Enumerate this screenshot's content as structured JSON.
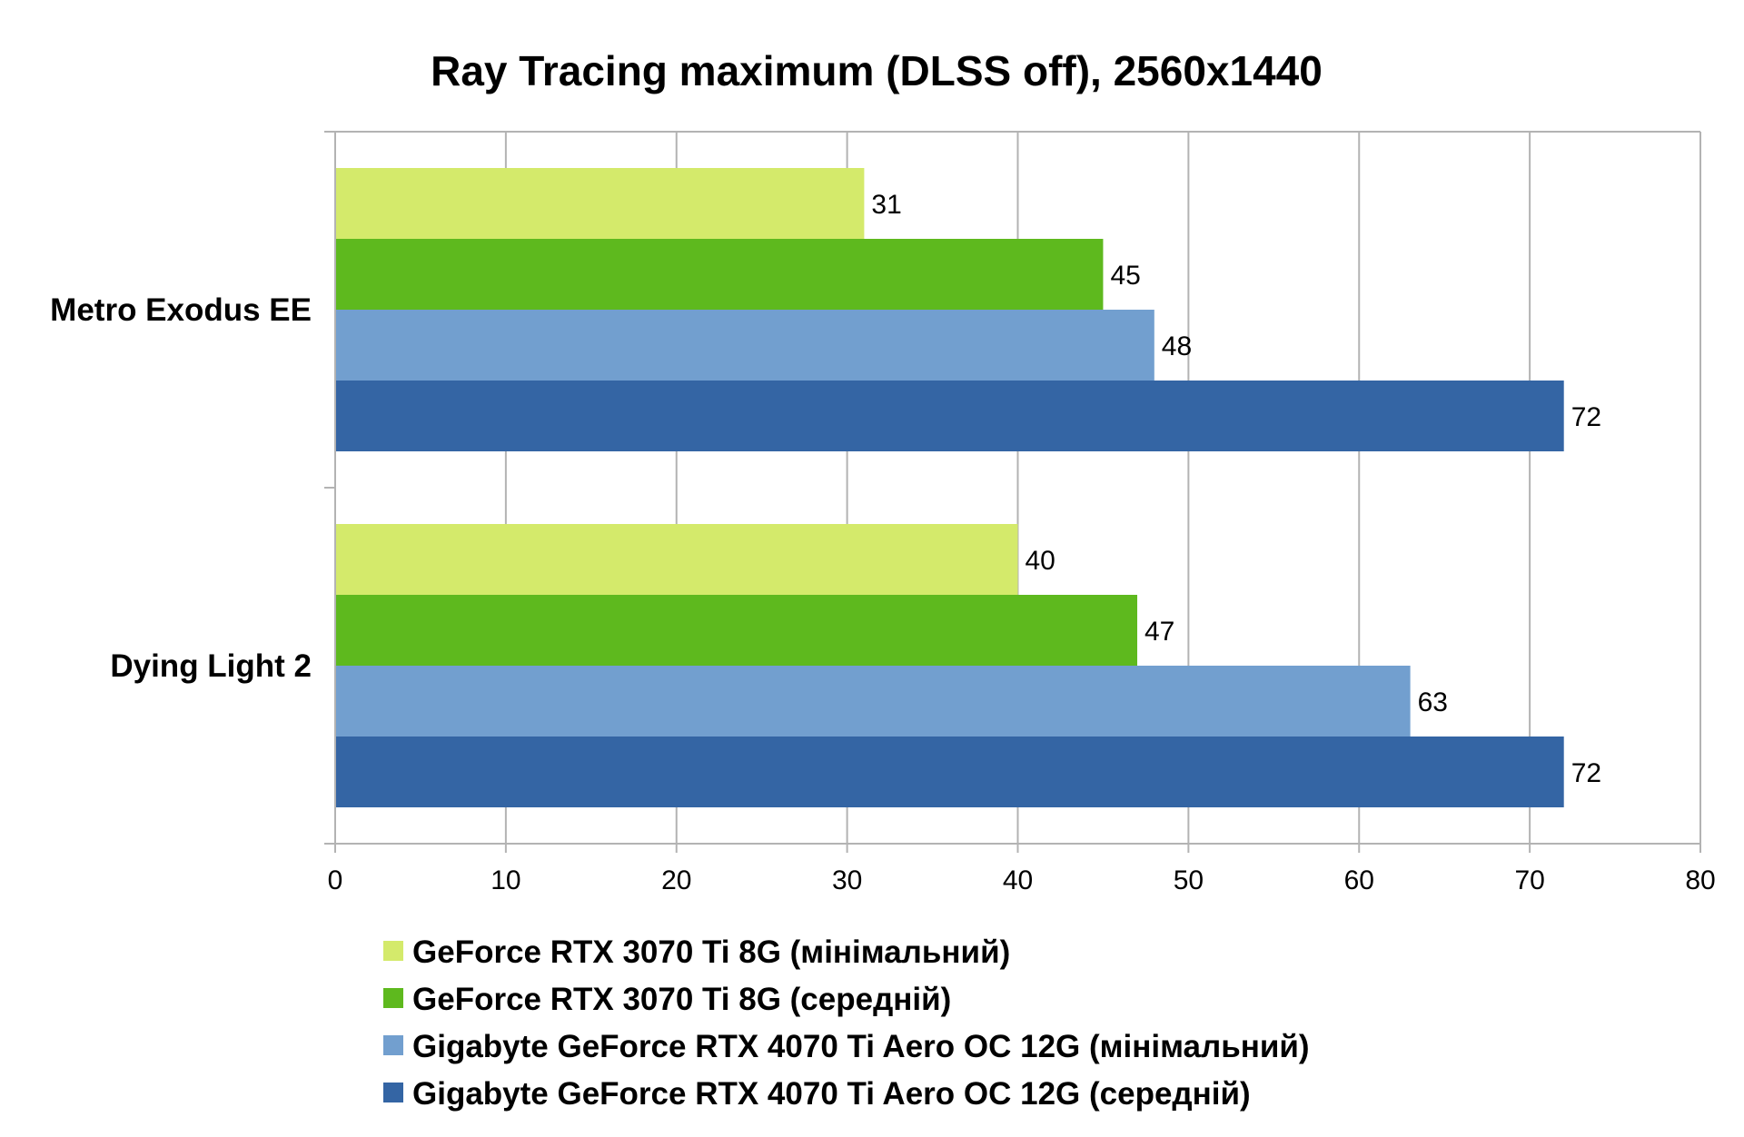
{
  "chart_data": {
    "type": "bar",
    "orientation": "horizontal",
    "title": "Ray Tracing maximum (DLSS off), 2560x1440",
    "xlabel": "",
    "ylabel": "",
    "categories": [
      "Metro Exodus EE",
      "Dying Light 2"
    ],
    "series": [
      {
        "name": "GeForce RTX 3070 Ti 8G (мінімальний)",
        "color": "#d4ea6b",
        "values": [
          31,
          40
        ]
      },
      {
        "name": "GeForce RTX 3070 Ti 8G (середній)",
        "color": "#5eb91e",
        "values": [
          45,
          47
        ]
      },
      {
        "name": "Gigabyte GeForce RTX 4070 Ti Aero OC 12G (мінімальний)",
        "color": "#729fcf",
        "values": [
          48,
          63
        ]
      },
      {
        "name": "Gigabyte GeForce RTX 4070 Ti Aero OC 12G (середній)",
        "color": "#3465a4",
        "values": [
          72,
          72
        ]
      }
    ],
    "xlim": [
      0,
      80
    ],
    "xticks": [
      0,
      10,
      20,
      30,
      40,
      50,
      60,
      70,
      80
    ],
    "grid": true,
    "data_labels": true,
    "legend_position": "bottom"
  }
}
